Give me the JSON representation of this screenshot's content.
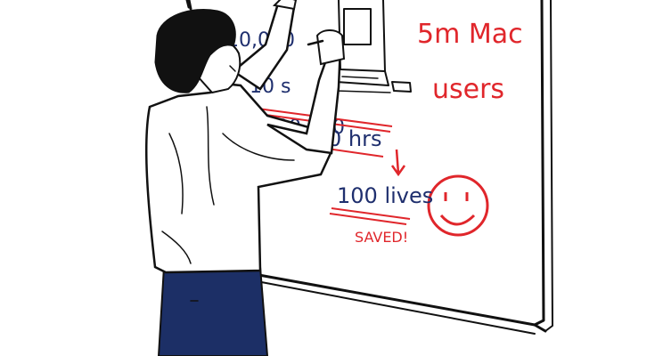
{
  "whiteboard": {
    "stat_users": "5m Mac",
    "stat_users_label": "users",
    "line_1": "10,000",
    "line_2": "10 s",
    "line_3": "200,000",
    "line_3_unit": "0 hrs",
    "result": "100 lives",
    "result_note": "SAVED!"
  },
  "icons": {
    "computer": "mac-computer-icon",
    "face": "smiley-face-icon",
    "arrow": "down-arrow-icon"
  },
  "colors": {
    "ink_blue": "#1f2f6e",
    "ink_red": "#e0262b",
    "pants": "#1c2f66",
    "outline": "#111111"
  }
}
